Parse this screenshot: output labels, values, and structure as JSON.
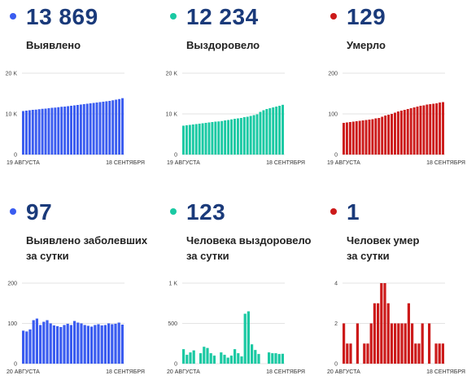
{
  "panels": [
    {
      "value": "13 869",
      "label": "Выявлено",
      "label2": ""
    },
    {
      "value": "12 234",
      "label": "Выздоровело",
      "label2": ""
    },
    {
      "value": "129",
      "label": "Умерло",
      "label2": ""
    },
    {
      "value": "97",
      "label": "Выявлено заболевших",
      "label2": "за сутки"
    },
    {
      "value": "123",
      "label": "Человека выздоровело",
      "label2": "за сутки"
    },
    {
      "value": "1",
      "label": "Человек умер",
      "label2": "за сутки"
    }
  ],
  "chart_data": [
    {
      "type": "bar",
      "color": "#3a5cf0",
      "x_start": "19 АВГУСТА",
      "x_end": "18 СЕНТЯБРЯ",
      "ylim": [
        0,
        20000
      ],
      "yticks": [
        0,
        10000,
        20000
      ],
      "ytick_labels": [
        "0",
        "10 K",
        "20 K"
      ],
      "values": [
        10700,
        10800,
        10900,
        11000,
        11050,
        11150,
        11250,
        11300,
        11400,
        11500,
        11550,
        11650,
        11750,
        11800,
        11900,
        12000,
        12100,
        12200,
        12300,
        12400,
        12500,
        12600,
        12700,
        12800,
        12900,
        13000,
        13100,
        13200,
        13350,
        13500,
        13650,
        13869
      ]
    },
    {
      "type": "bar",
      "color": "#1ac9a3",
      "x_start": "19 АВГУСТА",
      "x_end": "18 СЕНТЯБРЯ",
      "ylim": [
        0,
        20000
      ],
      "yticks": [
        0,
        10000,
        20000
      ],
      "ytick_labels": [
        "0",
        "10 K",
        "20 K"
      ],
      "values": [
        7100,
        7200,
        7300,
        7400,
        7500,
        7600,
        7700,
        7800,
        7900,
        8000,
        8100,
        8150,
        8250,
        8400,
        8500,
        8650,
        8800,
        8900,
        9000,
        9200,
        9300,
        9500,
        9700,
        9900,
        10500,
        10900,
        11200,
        11400,
        11600,
        11800,
        12000,
        12234
      ]
    },
    {
      "type": "bar",
      "color": "#cc1a1a",
      "x_start": "19 АВГУСТА",
      "x_end": "18 СЕНТЯБРЯ",
      "ylim": [
        0,
        200
      ],
      "yticks": [
        0,
        100,
        200
      ],
      "ytick_labels": [
        "0",
        "100",
        "200"
      ],
      "values": [
        78,
        79,
        80,
        81,
        82,
        83,
        84,
        85,
        86,
        87,
        89,
        90,
        93,
        96,
        98,
        100,
        103,
        106,
        108,
        110,
        112,
        114,
        116,
        118,
        120,
        121,
        123,
        124,
        125,
        126,
        128,
        129
      ]
    },
    {
      "type": "bar",
      "color": "#3a5cf0",
      "x_start": "20 АВГУСТА",
      "x_end": "18 СЕНТЯБРЯ",
      "ylim": [
        0,
        200
      ],
      "yticks": [
        0,
        100,
        200
      ],
      "ytick_labels": [
        "0",
        "100",
        "200"
      ],
      "values": [
        82,
        80,
        85,
        108,
        112,
        96,
        104,
        108,
        100,
        95,
        93,
        91,
        96,
        99,
        96,
        106,
        102,
        100,
        96,
        94,
        92,
        96,
        98,
        95,
        96,
        100,
        98,
        99,
        102,
        97
      ]
    },
    {
      "type": "bar",
      "color": "#1ac9a3",
      "x_start": "20 АВГУСТА",
      "x_end": "18 СЕНТЯБРЯ",
      "ylim": [
        0,
        1000
      ],
      "yticks": [
        0,
        500,
        1000
      ],
      "ytick_labels": [
        "0",
        "500",
        "1 K"
      ],
      "values": [
        180,
        110,
        140,
        165,
        0,
        130,
        210,
        195,
        130,
        100,
        0,
        140,
        110,
        75,
        100,
        180,
        130,
        90,
        620,
        650,
        240,
        170,
        120,
        0,
        0,
        140,
        130,
        130,
        120,
        123
      ]
    },
    {
      "type": "bar",
      "color": "#cc1a1a",
      "x_start": "20 АВГУСТА",
      "x_end": "18 СЕНТЯБРЯ",
      "ylim": [
        0,
        4
      ],
      "yticks": [
        0,
        2,
        4
      ],
      "ytick_labels": [
        "0",
        "2",
        "4"
      ],
      "values": [
        2,
        1,
        1,
        0,
        2,
        0,
        1,
        1,
        2,
        3,
        3,
        4,
        4,
        3,
        2,
        2,
        2,
        2,
        2,
        3,
        2,
        1,
        1,
        2,
        0,
        2,
        0,
        1,
        1,
        1
      ]
    }
  ]
}
